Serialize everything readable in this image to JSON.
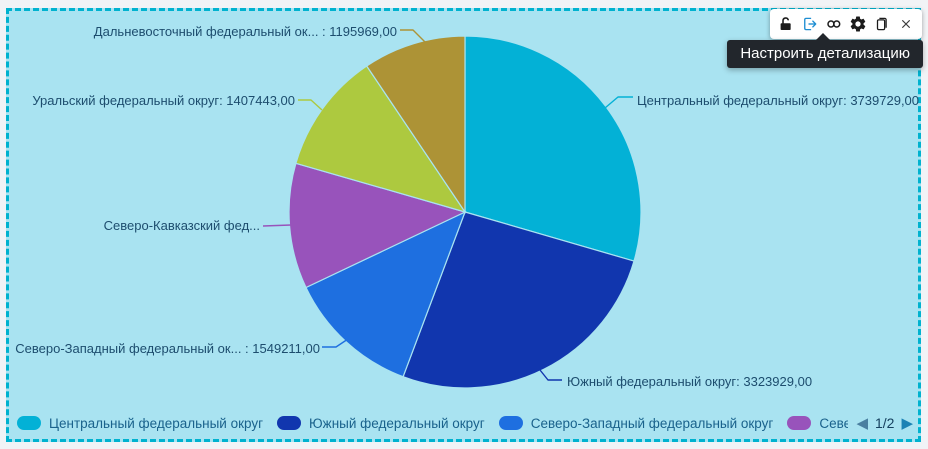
{
  "widget": {
    "background": "#a9e3f1",
    "border_color": "#00b2cf"
  },
  "toolbar": {
    "icons": [
      {
        "name": "unlock-icon"
      },
      {
        "name": "drilldown-icon",
        "color": "#1e8ed2"
      },
      {
        "name": "link-icon"
      },
      {
        "name": "gear-icon"
      },
      {
        "name": "copy-icon"
      },
      {
        "name": "close-icon"
      }
    ]
  },
  "tooltip": {
    "text": "Настроить детализацию"
  },
  "chart_data": {
    "type": "pie",
    "direction": "clockwise",
    "start_angle_deg": 0,
    "slices": [
      {
        "label": "Центральный федеральный округ",
        "value": 3739729,
        "color": "#03b1d6",
        "callout": "Центральный федеральный округ: 3739729,00"
      },
      {
        "label": "Южный федеральный округ",
        "value": 3323929,
        "color": "#1136ae",
        "callout": "Южный федеральный округ: 3323929,00"
      },
      {
        "label": "Северо-Западный федеральный округ",
        "value": 1549211,
        "color": "#1e6fe0",
        "callout": "Северо-Западный федеральный ок... : 1549211,00"
      },
      {
        "label": "Северо-Кавказский федеральный округ",
        "value": 1460000,
        "estimated": true,
        "color": "#9853bb",
        "callout": "Северо-Кавказский фед..."
      },
      {
        "label": "Уральский федеральный округ",
        "value": 1407443,
        "color": "#adc93f",
        "callout": "Уральский федеральный округ: 1407443,00"
      },
      {
        "label": "Дальневосточный федеральный округ",
        "value": 1195969,
        "color": "#ad9336",
        "callout": "Дальневосточный федеральный ок... : 1195969,00"
      }
    ]
  },
  "legend": {
    "items": [
      {
        "label": "Центральный федеральный округ",
        "color": "#03b1d6"
      },
      {
        "label": "Южный федеральный округ",
        "color": "#1136ae"
      },
      {
        "label": "Северо-Западный федеральный округ",
        "color": "#1e6fe0"
      },
      {
        "label": "Северо-Кавказский федеральный округ",
        "color": "#9853bb"
      }
    ],
    "page_indicator": "1/2",
    "prev_icon": "◀",
    "next_icon": "▶"
  }
}
